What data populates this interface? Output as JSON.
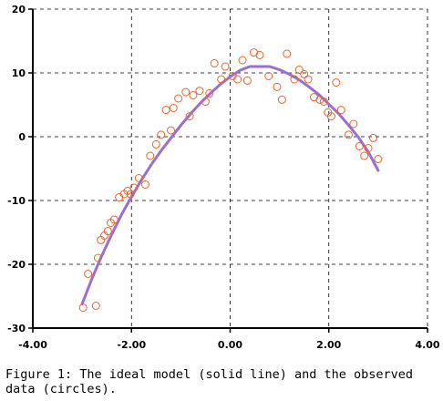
{
  "caption": "Figure 1: The ideal model (solid line) and the observed data (circles).",
  "chart_data": {
    "type": "scatter",
    "title": "",
    "xlabel": "",
    "ylabel": "",
    "xlim": [
      -4,
      4
    ],
    "ylim": [
      -30,
      20
    ],
    "grid": true,
    "grid_style": "dashed",
    "x_ticks": [
      {
        "value": -4,
        "label": "-4.00"
      },
      {
        "value": -2,
        "label": "-2.00"
      },
      {
        "value": 0,
        "label": "0.00"
      },
      {
        "value": 2,
        "label": "2.00"
      },
      {
        "value": 4,
        "label": "4.00"
      }
    ],
    "y_ticks": [
      {
        "value": -30,
        "label": "-30"
      },
      {
        "value": -20,
        "label": "-20"
      },
      {
        "value": -10,
        "label": "-10"
      },
      {
        "value": 0,
        "label": "0"
      },
      {
        "value": 10,
        "label": "10"
      },
      {
        "value": 20,
        "label": "20"
      }
    ],
    "colors": {
      "line": "#9b6fd0",
      "points": "#e8642a",
      "axis": "#000000",
      "grid": "#000000"
    },
    "series": [
      {
        "kind": "line",
        "x": [
          -3.0,
          -2.8,
          -2.6,
          -2.4,
          -2.2,
          -2.0,
          -1.8,
          -1.6,
          -1.4,
          -1.2,
          -1.0,
          -0.8,
          -0.6,
          -0.4,
          -0.2,
          0.0,
          0.2,
          0.4,
          0.6,
          0.8,
          1.0,
          1.2,
          1.4,
          1.6,
          1.8,
          2.0,
          2.2,
          2.4,
          2.6,
          2.8,
          3.0
        ],
        "y": [
          -26.2,
          -22.2,
          -18.6,
          -15.3,
          -12.2,
          -9.4,
          -6.8,
          -4.4,
          -2.2,
          -0.2,
          1.8,
          3.6,
          5.3,
          6.8,
          8.2,
          9.4,
          10.4,
          11.0,
          11.0,
          11.0,
          10.5,
          9.8,
          8.9,
          7.8,
          6.6,
          5.1,
          3.6,
          1.8,
          -0.1,
          -2.4,
          -5.3
        ]
      },
      {
        "kind": "scatter",
        "x": [
          -2.98,
          -2.88,
          -2.72,
          -2.68,
          -2.62,
          -2.55,
          -2.48,
          -2.42,
          -2.35,
          -2.25,
          -2.15,
          -2.08,
          -2.02,
          -1.95,
          -1.85,
          -1.72,
          -1.62,
          -1.5,
          -1.4,
          -1.3,
          -1.2,
          -1.15,
          -1.05,
          -0.9,
          -0.82,
          -0.75,
          -0.62,
          -0.5,
          -0.42,
          -0.32,
          -0.18,
          -0.1,
          0.05,
          0.15,
          0.25,
          0.35,
          0.48,
          0.6,
          0.78,
          0.95,
          1.05,
          1.15,
          1.3,
          1.4,
          1.5,
          1.58,
          1.7,
          1.82,
          1.9,
          1.98,
          2.05,
          2.15,
          2.25,
          2.4,
          2.5,
          2.62,
          2.72,
          2.8,
          2.9,
          3.0
        ],
        "y": [
          -26.8,
          -21.5,
          -26.5,
          -19.0,
          -16.2,
          -15.5,
          -14.8,
          -13.5,
          -13.0,
          -9.5,
          -9.0,
          -8.5,
          -9.0,
          -8.0,
          -6.5,
          -7.5,
          -3.0,
          -1.2,
          0.3,
          4.2,
          1.0,
          4.5,
          6.0,
          7.0,
          3.2,
          6.5,
          7.2,
          5.5,
          6.8,
          11.5,
          9.0,
          11.0,
          9.5,
          9.0,
          12.0,
          8.8,
          13.2,
          12.8,
          9.5,
          7.8,
          5.8,
          13.0,
          9.0,
          10.5,
          9.8,
          9.0,
          6.2,
          5.8,
          5.5,
          3.8,
          3.2,
          8.5,
          4.2,
          0.3,
          2.0,
          -1.5,
          -3.0,
          -1.8,
          -0.2,
          -3.5
        ]
      }
    ]
  }
}
